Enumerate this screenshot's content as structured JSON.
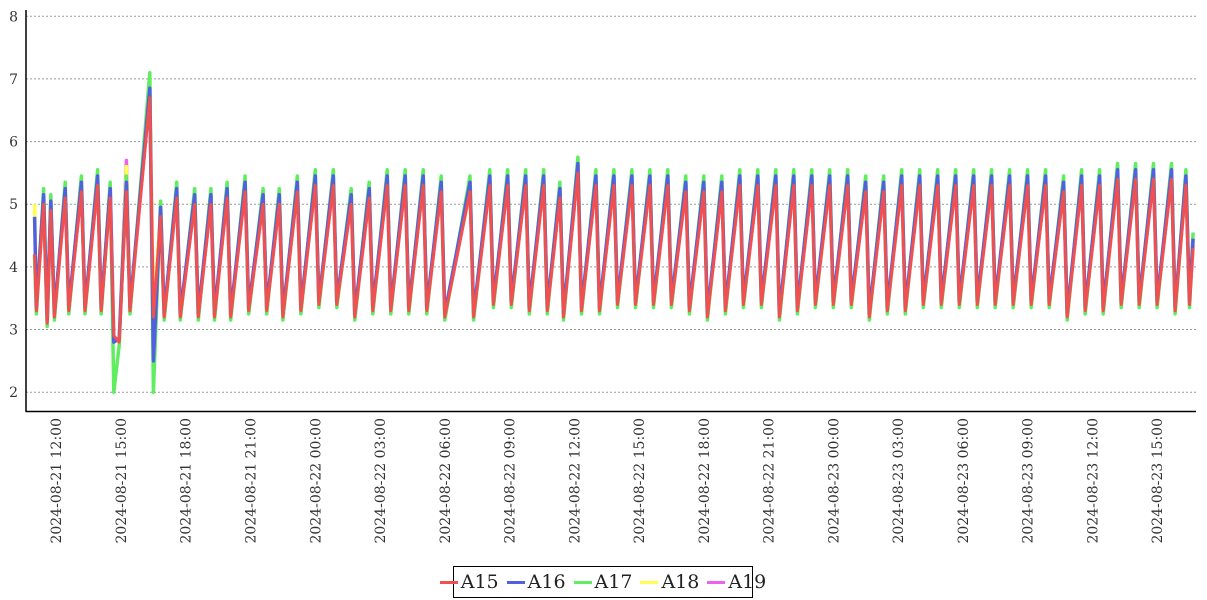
{
  "chart_data": {
    "type": "line",
    "title": "",
    "xlabel": "",
    "ylabel": "",
    "ylim": [
      1.7,
      8.1
    ],
    "xlim": [
      "2024-08-21 10:36",
      "2024-08-23 16:48"
    ],
    "y_ticks": [
      "2",
      "3",
      "4",
      "5",
      "6",
      "7",
      "8"
    ],
    "x_ticks": [
      "2024-08-21 12:00",
      "2024-08-21 15:00",
      "2024-08-21 18:00",
      "2024-08-21 21:00",
      "2024-08-22 00:00",
      "2024-08-22 03:00",
      "2024-08-22 06:00",
      "2024-08-22 09:00",
      "2024-08-22 12:00",
      "2024-08-22 15:00",
      "2024-08-22 18:00",
      "2024-08-22 21:00",
      "2024-08-23 00:00",
      "2024-08-23 03:00",
      "2024-08-23 06:00",
      "2024-08-23 09:00",
      "2024-08-23 12:00",
      "2024-08-23 15:00"
    ],
    "grid": "horizontal dotted",
    "legend_placement": "bottom-center",
    "cycle_note_free_series": true,
    "series": [
      {
        "name": "A15",
        "color": "#f05050",
        "baseline": "A15_points"
      },
      {
        "name": "A16",
        "color": "#5060e0"
      },
      {
        "name": "A17",
        "color": "#60ee60"
      },
      {
        "name": "A18",
        "color": "#ffff50"
      },
      {
        "name": "A19",
        "color": "#ee60ee"
      }
    ],
    "A15_points": [
      [
        "2024-08-21 11:00",
        4.2
      ],
      [
        "2024-08-21 11:05",
        3.3
      ],
      [
        "2024-08-21 11:25",
        5.0
      ],
      [
        "2024-08-21 11:35",
        3.1
      ],
      [
        "2024-08-21 11:45",
        4.9
      ],
      [
        "2024-08-21 11:55",
        3.2
      ],
      [
        "2024-08-21 12:25",
        5.1
      ],
      [
        "2024-08-21 12:35",
        3.3
      ],
      [
        "2024-08-21 13:10",
        5.2
      ],
      [
        "2024-08-21 13:20",
        3.3
      ],
      [
        "2024-08-21 13:55",
        5.3
      ],
      [
        "2024-08-21 14:05",
        3.3
      ],
      [
        "2024-08-21 14:30",
        5.1
      ],
      [
        "2024-08-21 14:40",
        2.9
      ],
      [
        "2024-08-21 14:55",
        2.8
      ],
      [
        "2024-08-21 15:15",
        5.2
      ],
      [
        "2024-08-21 15:25",
        3.3
      ],
      [
        "2024-08-21 16:20",
        6.7
      ],
      [
        "2024-08-21 16:30",
        3.2
      ],
      [
        "2024-08-21 16:50",
        4.8
      ],
      [
        "2024-08-21 17:00",
        3.2
      ],
      [
        "2024-08-21 17:35",
        5.1
      ],
      [
        "2024-08-21 17:45",
        3.2
      ],
      [
        "2024-08-21 18:25",
        5.0
      ],
      [
        "2024-08-21 18:35",
        3.2
      ],
      [
        "2024-08-21 19:10",
        5.0
      ],
      [
        "2024-08-21 19:20",
        3.2
      ],
      [
        "2024-08-21 19:55",
        5.1
      ],
      [
        "2024-08-21 20:05",
        3.2
      ],
      [
        "2024-08-21 20:45",
        5.2
      ],
      [
        "2024-08-21 20:55",
        3.3
      ],
      [
        "2024-08-21 21:35",
        5.0
      ],
      [
        "2024-08-21 21:45",
        3.3
      ],
      [
        "2024-08-21 22:20",
        5.0
      ],
      [
        "2024-08-21 22:30",
        3.2
      ],
      [
        "2024-08-21 23:10",
        5.2
      ],
      [
        "2024-08-21 23:20",
        3.3
      ],
      [
        "2024-08-22 00:00",
        5.3
      ],
      [
        "2024-08-22 00:10",
        3.4
      ],
      [
        "2024-08-22 00:50",
        5.3
      ],
      [
        "2024-08-22 01:00",
        3.4
      ],
      [
        "2024-08-22 01:40",
        5.0
      ],
      [
        "2024-08-22 01:50",
        3.2
      ],
      [
        "2024-08-22 02:30",
        5.1
      ],
      [
        "2024-08-22 02:40",
        3.3
      ],
      [
        "2024-08-22 03:20",
        5.3
      ],
      [
        "2024-08-22 03:30",
        3.3
      ],
      [
        "2024-08-22 04:10",
        5.3
      ],
      [
        "2024-08-22 04:20",
        3.3
      ],
      [
        "2024-08-22 05:00",
        5.3
      ],
      [
        "2024-08-22 05:10",
        3.3
      ],
      [
        "2024-08-22 05:50",
        5.2
      ],
      [
        "2024-08-22 06:00",
        3.2
      ],
      [
        "2024-08-22 07:10",
        5.2
      ],
      [
        "2024-08-22 07:20",
        3.2
      ],
      [
        "2024-08-22 08:05",
        5.3
      ],
      [
        "2024-08-22 08:15",
        3.4
      ],
      [
        "2024-08-22 08:55",
        5.3
      ],
      [
        "2024-08-22 09:05",
        3.4
      ],
      [
        "2024-08-22 09:45",
        5.3
      ],
      [
        "2024-08-22 09:55",
        3.3
      ],
      [
        "2024-08-22 10:35",
        5.3
      ],
      [
        "2024-08-22 10:45",
        3.3
      ],
      [
        "2024-08-22 11:20",
        5.1
      ],
      [
        "2024-08-22 11:30",
        3.2
      ],
      [
        "2024-08-22 12:10",
        5.5
      ],
      [
        "2024-08-22 12:20",
        3.3
      ],
      [
        "2024-08-22 13:00",
        5.3
      ],
      [
        "2024-08-22 13:10",
        3.3
      ],
      [
        "2024-08-22 13:50",
        5.3
      ],
      [
        "2024-08-22 14:00",
        3.4
      ],
      [
        "2024-08-22 14:40",
        5.3
      ],
      [
        "2024-08-22 14:50",
        3.4
      ],
      [
        "2024-08-22 15:30",
        5.3
      ],
      [
        "2024-08-22 15:40",
        3.4
      ],
      [
        "2024-08-22 16:20",
        5.3
      ],
      [
        "2024-08-22 16:30",
        3.4
      ],
      [
        "2024-08-22 17:10",
        5.2
      ],
      [
        "2024-08-22 17:20",
        3.3
      ],
      [
        "2024-08-22 18:00",
        5.2
      ],
      [
        "2024-08-22 18:10",
        3.2
      ],
      [
        "2024-08-22 18:50",
        5.2
      ],
      [
        "2024-08-22 19:00",
        3.3
      ],
      [
        "2024-08-22 19:40",
        5.3
      ],
      [
        "2024-08-22 19:50",
        3.4
      ],
      [
        "2024-08-22 20:30",
        5.3
      ],
      [
        "2024-08-22 20:40",
        3.4
      ],
      [
        "2024-08-22 21:20",
        5.3
      ],
      [
        "2024-08-22 21:30",
        3.2
      ],
      [
        "2024-08-22 22:10",
        5.3
      ],
      [
        "2024-08-22 22:20",
        3.3
      ],
      [
        "2024-08-22 23:00",
        5.3
      ],
      [
        "2024-08-22 23:10",
        3.4
      ],
      [
        "2024-08-22 23:50",
        5.3
      ],
      [
        "2024-08-23 00:00",
        3.4
      ],
      [
        "2024-08-23 00:40",
        5.3
      ],
      [
        "2024-08-23 00:50",
        3.4
      ],
      [
        "2024-08-23 01:30",
        5.2
      ],
      [
        "2024-08-23 01:40",
        3.2
      ],
      [
        "2024-08-23 02:20",
        5.2
      ],
      [
        "2024-08-23 02:30",
        3.3
      ],
      [
        "2024-08-23 03:10",
        5.3
      ],
      [
        "2024-08-23 03:20",
        3.3
      ],
      [
        "2024-08-23 04:00",
        5.3
      ],
      [
        "2024-08-23 04:10",
        3.4
      ],
      [
        "2024-08-23 04:50",
        5.3
      ],
      [
        "2024-08-23 05:00",
        3.4
      ],
      [
        "2024-08-23 05:40",
        5.3
      ],
      [
        "2024-08-23 05:50",
        3.4
      ],
      [
        "2024-08-23 06:30",
        5.3
      ],
      [
        "2024-08-23 06:40",
        3.4
      ],
      [
        "2024-08-23 07:20",
        5.3
      ],
      [
        "2024-08-23 07:30",
        3.4
      ],
      [
        "2024-08-23 08:10",
        5.3
      ],
      [
        "2024-08-23 08:20",
        3.4
      ],
      [
        "2024-08-23 09:00",
        5.3
      ],
      [
        "2024-08-23 09:10",
        3.4
      ],
      [
        "2024-08-23 09:50",
        5.3
      ],
      [
        "2024-08-23 10:00",
        3.4
      ],
      [
        "2024-08-23 10:40",
        5.2
      ],
      [
        "2024-08-23 10:50",
        3.2
      ],
      [
        "2024-08-23 11:30",
        5.3
      ],
      [
        "2024-08-23 11:40",
        3.3
      ],
      [
        "2024-08-23 12:20",
        5.3
      ],
      [
        "2024-08-23 12:30",
        3.3
      ],
      [
        "2024-08-23 13:10",
        5.4
      ],
      [
        "2024-08-23 13:20",
        3.4
      ],
      [
        "2024-08-23 14:00",
        5.4
      ],
      [
        "2024-08-23 14:10",
        3.4
      ],
      [
        "2024-08-23 14:50",
        5.4
      ],
      [
        "2024-08-23 15:00",
        3.4
      ],
      [
        "2024-08-23 15:40",
        5.4
      ],
      [
        "2024-08-23 15:50",
        3.3
      ],
      [
        "2024-08-23 16:20",
        5.3
      ],
      [
        "2024-08-23 16:30",
        3.4
      ],
      [
        "2024-08-23 16:40",
        4.3
      ]
    ],
    "offsets": {
      "A16": {
        "peak": 0.15,
        "trough": 0.05,
        "spikes": [
          [
            "2024-08-21 16:30",
            2.5
          ],
          [
            "2024-08-21 11:00",
            4.8
          ],
          [
            "2024-08-21 14:40",
            2.8
          ]
        ]
      },
      "A17": {
        "peak": 0.25,
        "trough": -0.05,
        "spikes": [
          [
            "2024-08-21 14:40",
            2.0
          ],
          [
            "2024-08-21 16:20",
            7.1
          ],
          [
            "2024-08-21 16:30",
            2.0
          ]
        ]
      },
      "A18": {
        "peak": 0.1,
        "trough": 0.0,
        "spikes": [
          [
            "2024-08-21 15:15",
            5.6
          ],
          [
            "2024-08-21 11:00",
            5.0
          ]
        ]
      },
      "A19": {
        "peak": 0.05,
        "trough": 0.0,
        "spikes": [
          [
            "2024-08-21 15:15",
            5.7
          ],
          [
            "2024-08-21 14:30",
            5.3
          ]
        ]
      }
    }
  }
}
